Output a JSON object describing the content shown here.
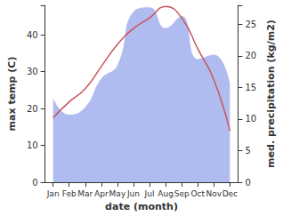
{
  "chart_data": {
    "type": "line",
    "xlabel": "date (month)",
    "ylabel": "max temp (C)",
    "y2label": "med. precipitation (kg/m2)",
    "categories": [
      "Jan",
      "Feb",
      "Mar",
      "Apr",
      "May",
      "Jun",
      "Jul",
      "Aug",
      "Sep",
      "Oct",
      "Nov",
      "Dec"
    ],
    "series": [
      {
        "name": "med. precipitation",
        "type": "area",
        "axis": "y2",
        "color": "#b0bcf0",
        "values": [
          13.3,
          10.7,
          11.9,
          16.4,
          18.5,
          27.0,
          27.7,
          24.4,
          26.3,
          19.5,
          20.2,
          15.7
        ]
      },
      {
        "name": "max temp",
        "type": "line",
        "color": "#c8545a",
        "values": [
          17.5,
          21.8,
          25.4,
          31.4,
          37.4,
          41.7,
          44.6,
          47.7,
          44.6,
          36.2,
          27.8,
          13.9
        ]
      }
    ],
    "ylim": [
      0,
      48
    ],
    "yticks": [
      0,
      10,
      20,
      30,
      40
    ],
    "y2lim": [
      0,
      28
    ],
    "y2ticks": [
      0,
      5,
      10,
      15,
      20,
      25
    ],
    "grid": false
  }
}
